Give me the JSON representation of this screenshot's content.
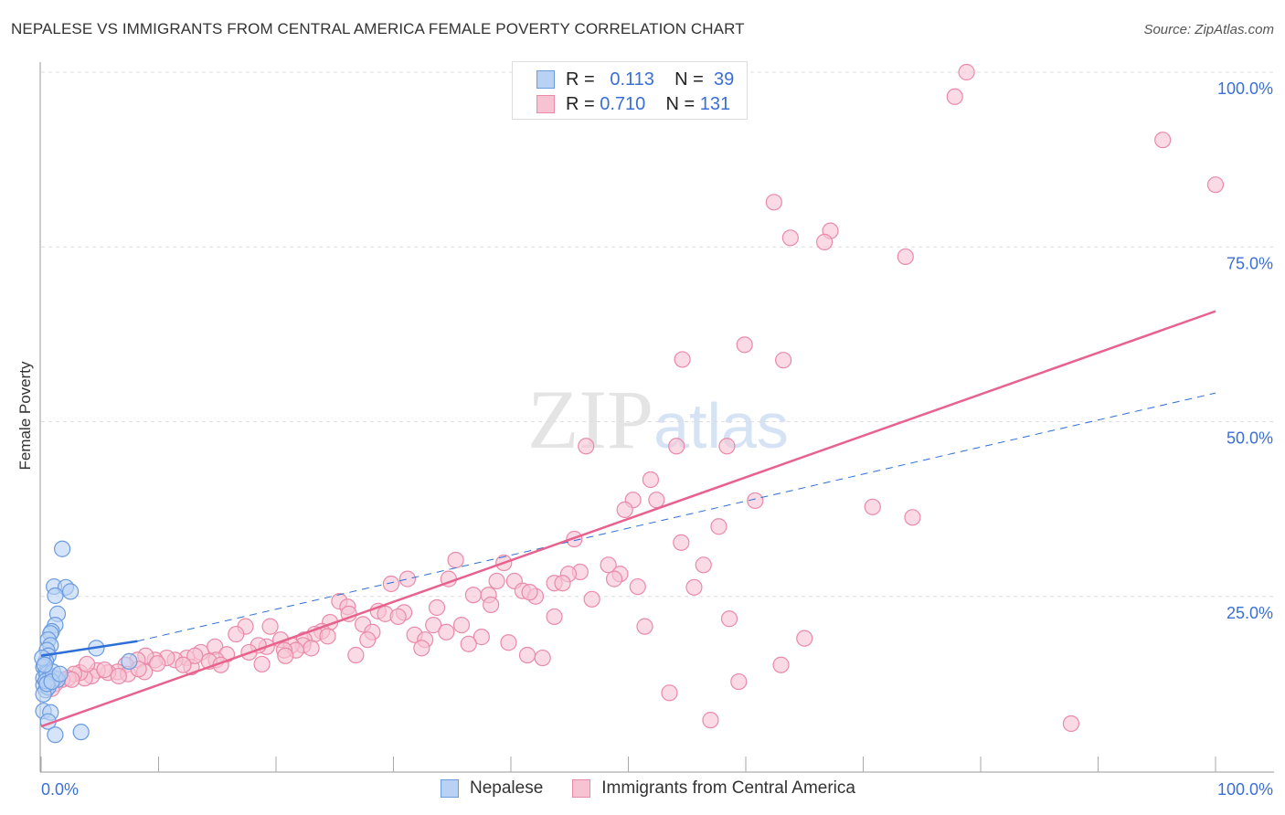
{
  "chart_data": {
    "type": "scatter",
    "title": "NEPALESE VS IMMIGRANTS FROM CENTRAL AMERICA FEMALE POVERTY CORRELATION CHART",
    "source": "Source: ZipAtlas.com",
    "xlabel": "",
    "ylabel": "Female Poverty",
    "xlim": [
      0,
      100
    ],
    "ylim": [
      0,
      100
    ],
    "x_tick_labels": [
      "0.0%",
      "100.0%"
    ],
    "y_tick_labels": [
      "100.0%",
      "75.0%",
      "50.0%",
      "25.0%"
    ],
    "y_ticks": [
      100,
      75,
      50,
      25
    ],
    "grid": true,
    "watermark": "ZIPatlas",
    "legend_stats": [
      {
        "r_label": "R =",
        "r": "0.113",
        "n_label": "N =",
        "n": "39"
      },
      {
        "r_label": "R =",
        "r": "0.710",
        "n_label": "N =",
        "n": "131"
      }
    ],
    "series": [
      {
        "name": "Nepalese",
        "color": "#6a9be0",
        "fill": "#b9d2f3",
        "line_color": "#2e6fd6",
        "trend": {
          "solid": [
            [
              0,
              16.5
            ],
            [
              8.2,
              18.6
            ]
          ],
          "dashed": [
            [
              8.2,
              18.6
            ],
            [
              100,
              54.1
            ]
          ]
        },
        "points": [
          [
            1.8,
            31.8
          ],
          [
            1.1,
            26.4
          ],
          [
            2.1,
            26.3
          ],
          [
            2.5,
            25.7
          ],
          [
            1.2,
            25.1
          ],
          [
            1.4,
            22.5
          ],
          [
            1.2,
            20.9
          ],
          [
            0.9,
            20.0
          ],
          [
            0.8,
            19.7
          ],
          [
            0.6,
            18.8
          ],
          [
            0.8,
            18.0
          ],
          [
            0.5,
            17.3
          ],
          [
            0.6,
            16.5
          ],
          [
            0.4,
            15.7
          ],
          [
            0.2,
            14.9
          ],
          [
            0.4,
            14.1
          ],
          [
            0.2,
            13.3
          ],
          [
            0.5,
            13.9
          ],
          [
            0.8,
            13.6
          ],
          [
            1.2,
            13.3
          ],
          [
            1.4,
            13.1
          ],
          [
            0.2,
            12.3
          ],
          [
            0.4,
            11.6
          ],
          [
            0.6,
            12.0
          ],
          [
            0.2,
            8.6
          ],
          [
            0.8,
            8.4
          ],
          [
            0.6,
            7.1
          ],
          [
            1.2,
            5.2
          ],
          [
            3.4,
            5.6
          ],
          [
            4.7,
            17.6
          ],
          [
            7.5,
            15.7
          ],
          [
            0.2,
            11.0
          ],
          [
            0.1,
            16.2
          ],
          [
            0.4,
            12.9
          ],
          [
            1.0,
            14.2
          ],
          [
            0.3,
            15.2
          ],
          [
            0.5,
            12.5
          ],
          [
            0.9,
            12.8
          ],
          [
            1.6,
            13.9
          ]
        ]
      },
      {
        "name": "Immigrants from Central America",
        "color": "#ea8aa8",
        "fill": "#f7c3d3",
        "line_color": "#e8628e",
        "trend": {
          "solid": [
            [
              0,
              6.4
            ],
            [
              100,
              65.8
            ]
          ]
        },
        "points": [
          [
            78.8,
            100.0
          ],
          [
            77.8,
            96.5
          ],
          [
            95.5,
            90.3
          ],
          [
            100.0,
            83.9
          ],
          [
            62.4,
            81.4
          ],
          [
            63.8,
            76.3
          ],
          [
            67.2,
            77.3
          ],
          [
            66.7,
            75.7
          ],
          [
            73.6,
            73.6
          ],
          [
            59.9,
            61.0
          ],
          [
            54.6,
            58.9
          ],
          [
            63.2,
            58.8
          ],
          [
            46.4,
            46.5
          ],
          [
            54.1,
            46.5
          ],
          [
            58.4,
            46.5
          ],
          [
            51.9,
            41.7
          ],
          [
            50.4,
            38.8
          ],
          [
            52.4,
            38.8
          ],
          [
            49.7,
            37.4
          ],
          [
            60.8,
            38.7
          ],
          [
            70.8,
            37.8
          ],
          [
            74.2,
            36.3
          ],
          [
            57.7,
            35.0
          ],
          [
            45.4,
            33.2
          ],
          [
            54.5,
            32.7
          ],
          [
            35.3,
            30.2
          ],
          [
            39.4,
            29.8
          ],
          [
            48.3,
            29.5
          ],
          [
            56.4,
            29.5
          ],
          [
            45.9,
            28.5
          ],
          [
            49.3,
            28.2
          ],
          [
            44.9,
            28.2
          ],
          [
            48.8,
            27.5
          ],
          [
            34.7,
            27.5
          ],
          [
            29.8,
            26.8
          ],
          [
            31.2,
            27.5
          ],
          [
            38.8,
            27.2
          ],
          [
            40.3,
            27.2
          ],
          [
            43.7,
            26.9
          ],
          [
            44.4,
            26.9
          ],
          [
            50.8,
            26.4
          ],
          [
            55.6,
            26.3
          ],
          [
            41.0,
            25.8
          ],
          [
            36.8,
            25.2
          ],
          [
            38.1,
            25.2
          ],
          [
            42.1,
            25.0
          ],
          [
            41.6,
            25.6
          ],
          [
            25.4,
            24.3
          ],
          [
            38.3,
            23.8
          ],
          [
            46.9,
            24.6
          ],
          [
            26.1,
            23.5
          ],
          [
            33.7,
            23.4
          ],
          [
            26.2,
            22.5
          ],
          [
            30.9,
            22.7
          ],
          [
            28.7,
            22.9
          ],
          [
            29.3,
            22.5
          ],
          [
            43.7,
            22.1
          ],
          [
            30.4,
            22.1
          ],
          [
            24.6,
            21.3
          ],
          [
            27.4,
            21.0
          ],
          [
            35.8,
            20.9
          ],
          [
            33.4,
            20.9
          ],
          [
            58.6,
            21.8
          ],
          [
            51.4,
            20.7
          ],
          [
            28.2,
            19.9
          ],
          [
            34.5,
            19.9
          ],
          [
            23.9,
            20.0
          ],
          [
            23.3,
            19.6
          ],
          [
            19.5,
            20.7
          ],
          [
            17.4,
            20.7
          ],
          [
            16.6,
            19.6
          ],
          [
            31.8,
            19.5
          ],
          [
            37.5,
            19.2
          ],
          [
            20.4,
            18.8
          ],
          [
            22.4,
            18.8
          ],
          [
            24.4,
            19.3
          ],
          [
            32.7,
            18.8
          ],
          [
            27.8,
            18.8
          ],
          [
            22.3,
            18.0
          ],
          [
            21.3,
            18.0
          ],
          [
            19.2,
            17.8
          ],
          [
            18.5,
            18.0
          ],
          [
            32.4,
            17.6
          ],
          [
            39.8,
            18.4
          ],
          [
            65.0,
            19.0
          ],
          [
            36.4,
            18.2
          ],
          [
            23.0,
            17.6
          ],
          [
            21.7,
            17.3
          ],
          [
            20.7,
            17.3
          ],
          [
            17.7,
            17.0
          ],
          [
            14.8,
            17.8
          ],
          [
            13.6,
            17.0
          ],
          [
            15.8,
            16.7
          ],
          [
            14.9,
            15.9
          ],
          [
            26.8,
            16.6
          ],
          [
            41.4,
            16.6
          ],
          [
            42.7,
            16.2
          ],
          [
            20.8,
            16.5
          ],
          [
            18.8,
            15.3
          ],
          [
            12.4,
            16.2
          ],
          [
            11.4,
            15.9
          ],
          [
            10.7,
            16.2
          ],
          [
            9.7,
            15.9
          ],
          [
            8.9,
            16.5
          ],
          [
            8.2,
            15.9
          ],
          [
            7.2,
            15.2
          ],
          [
            6.5,
            14.2
          ],
          [
            5.7,
            14.1
          ],
          [
            4.8,
            14.4
          ],
          [
            4.3,
            13.6
          ],
          [
            3.7,
            13.3
          ],
          [
            3.3,
            14.1
          ],
          [
            2.8,
            13.9
          ],
          [
            2.3,
            13.3
          ],
          [
            1.8,
            13.1
          ],
          [
            1.2,
            12.5
          ],
          [
            2.6,
            13.1
          ],
          [
            8.8,
            14.2
          ],
          [
            7.4,
            13.9
          ],
          [
            8.3,
            14.6
          ],
          [
            9.9,
            15.4
          ],
          [
            12.8,
            14.9
          ],
          [
            14.3,
            15.7
          ],
          [
            15.3,
            15.2
          ],
          [
            13.1,
            16.5
          ],
          [
            12.1,
            15.2
          ],
          [
            63.0,
            15.2
          ],
          [
            59.4,
            12.8
          ],
          [
            53.5,
            11.2
          ],
          [
            57.0,
            7.3
          ],
          [
            87.7,
            6.8
          ],
          [
            3.9,
            15.3
          ],
          [
            6.6,
            13.6
          ],
          [
            5.4,
            14.5
          ],
          [
            0.9,
            11.8
          ]
        ]
      }
    ]
  }
}
